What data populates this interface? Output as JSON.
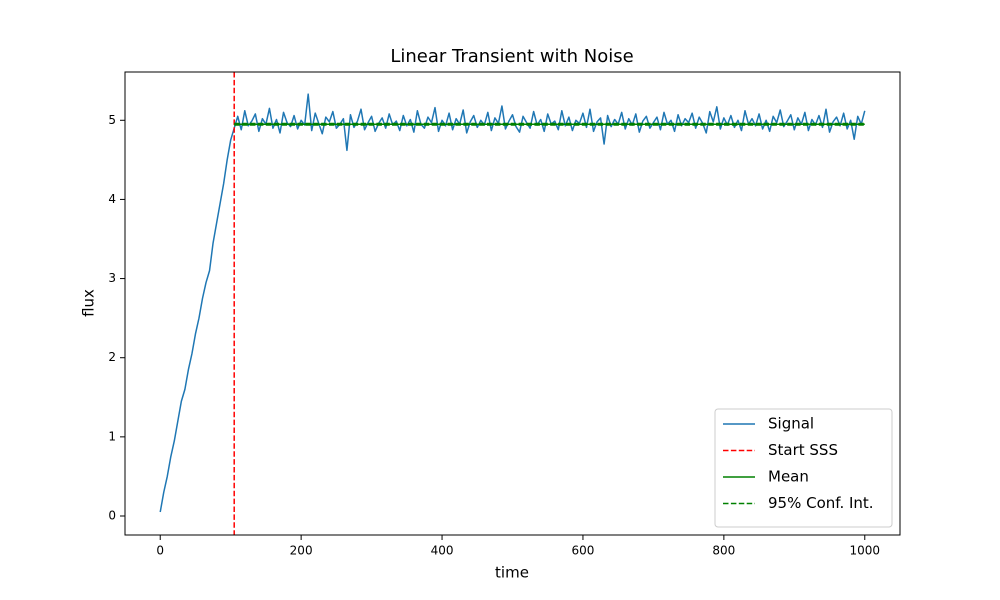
{
  "chart_data": {
    "type": "line",
    "title": "Linear Transient with Noise",
    "x_label": "time",
    "y_label": "flux",
    "xlim": [
      -50,
      1050
    ],
    "ylim": [
      -0.24,
      5.61
    ],
    "xticks": [
      0,
      200,
      400,
      600,
      800,
      1000
    ],
    "yticks": [
      0,
      1,
      2,
      3,
      4,
      5
    ],
    "legend": "lower right",
    "series": [
      {
        "name": "Signal",
        "color": "#1f77b4",
        "style": "solid",
        "x": [
          0,
          5,
          10,
          15,
          20,
          25,
          30,
          35,
          40,
          45,
          50,
          55,
          60,
          65,
          70,
          75,
          80,
          85,
          90,
          95,
          100,
          105,
          110,
          115,
          120,
          125,
          130,
          135,
          140,
          145,
          150,
          155,
          160,
          165,
          170,
          175,
          180,
          185,
          190,
          195,
          200,
          205,
          210,
          215,
          220,
          225,
          230,
          235,
          240,
          245,
          250,
          255,
          260,
          265,
          270,
          275,
          280,
          285,
          290,
          295,
          300,
          305,
          310,
          315,
          320,
          325,
          330,
          335,
          340,
          345,
          350,
          355,
          360,
          365,
          370,
          375,
          380,
          385,
          390,
          395,
          400,
          405,
          410,
          415,
          420,
          425,
          430,
          435,
          440,
          445,
          450,
          455,
          460,
          465,
          470,
          475,
          480,
          485,
          490,
          495,
          500,
          505,
          510,
          515,
          520,
          525,
          530,
          535,
          540,
          545,
          550,
          555,
          560,
          565,
          570,
          575,
          580,
          585,
          590,
          595,
          600,
          605,
          610,
          615,
          620,
          625,
          630,
          635,
          640,
          645,
          650,
          655,
          660,
          665,
          670,
          675,
          680,
          685,
          690,
          695,
          700,
          705,
          710,
          715,
          720,
          725,
          730,
          735,
          740,
          745,
          750,
          755,
          760,
          765,
          770,
          775,
          780,
          785,
          790,
          795,
          800,
          805,
          810,
          815,
          820,
          825,
          830,
          835,
          840,
          845,
          850,
          855,
          860,
          865,
          870,
          875,
          880,
          885,
          890,
          895,
          900,
          905,
          910,
          915,
          920,
          925,
          930,
          935,
          940,
          945,
          950,
          955,
          960,
          965,
          970,
          975,
          980,
          985,
          990,
          995,
          1000
        ],
        "values": [
          0.05,
          0.3,
          0.5,
          0.75,
          0.95,
          1.2,
          1.45,
          1.6,
          1.85,
          2.05,
          2.3,
          2.5,
          2.75,
          2.95,
          3.1,
          3.45,
          3.7,
          3.95,
          4.2,
          4.5,
          4.75,
          4.9,
          5.05,
          4.88,
          5.12,
          4.93,
          4.99,
          5.08,
          4.86,
          5.02,
          4.95,
          5.15,
          4.9,
          5.01,
          4.84,
          5.1,
          4.97,
          4.92,
          5.06,
          4.89,
          5.0,
          4.94,
          5.33,
          4.87,
          5.09,
          4.96,
          4.83,
          5.04,
          4.98,
          5.11,
          4.9,
          4.95,
          5.02,
          4.62,
          5.07,
          4.91,
          4.99,
          5.14,
          4.88,
          4.97,
          5.05,
          4.86,
          4.96,
          5.03,
          4.9,
          5.08,
          4.94,
          4.99,
          4.87,
          5.06,
          4.93,
          5.01,
          4.85,
          5.12,
          4.95,
          4.9,
          5.04,
          4.97,
          5.16,
          4.86,
          5.0,
          4.93,
          5.09,
          4.88,
          5.02,
          4.95,
          5.13,
          4.84,
          4.98,
          5.06,
          4.91,
          5.0,
          4.94,
          5.1,
          4.87,
          5.03,
          4.96,
          5.18,
          4.89,
          4.99,
          5.07,
          4.92,
          4.85,
          5.05,
          4.97,
          4.9,
          5.11,
          4.94,
          5.01,
          4.86,
          5.08,
          4.95,
          4.99,
          4.88,
          5.12,
          4.93,
          5.04,
          4.87,
          5.0,
          4.96,
          5.09,
          4.91,
          5.14,
          4.86,
          4.98,
          5.03,
          4.7,
          5.06,
          4.92,
          5.01,
          4.95,
          5.1,
          4.89,
          5.02,
          4.94,
          5.08,
          4.85,
          4.99,
          5.05,
          4.9,
          4.97,
          5.04,
          4.88,
          5.1,
          4.95,
          5.0,
          4.86,
          5.07,
          4.93,
          5.02,
          4.97,
          5.09,
          4.9,
          5.04,
          4.96,
          4.84,
          5.11,
          4.98,
          5.17,
          4.89,
          5.03,
          4.94,
          5.06,
          4.91,
          5.0,
          4.87,
          5.12,
          4.95,
          5.02,
          4.93,
          5.08,
          4.89,
          5.0,
          4.86,
          5.05,
          4.97,
          5.13,
          4.92,
          4.99,
          5.07,
          4.88,
          5.03,
          4.95,
          5.1,
          4.87,
          5.01,
          4.94,
          5.06,
          4.91,
          5.14,
          4.85,
          4.98,
          5.04,
          4.93,
          5.09,
          4.89,
          5.0,
          4.76,
          5.05,
          4.95,
          5.12
        ]
      },
      {
        "name": "Start SSS",
        "color": "#ff0000",
        "style": "dashed",
        "vline": 105
      },
      {
        "name": "Mean",
        "color": "#008000",
        "style": "solid",
        "x": [
          105,
          1000
        ],
        "values": [
          4.95,
          4.95
        ]
      },
      {
        "name": "95% Conf. Int.",
        "color": "#008000",
        "style": "dashed",
        "x": [
          105,
          1000,
          null,
          105,
          1000
        ],
        "values": [
          4.94,
          4.94,
          null,
          4.96,
          4.96
        ]
      }
    ]
  }
}
